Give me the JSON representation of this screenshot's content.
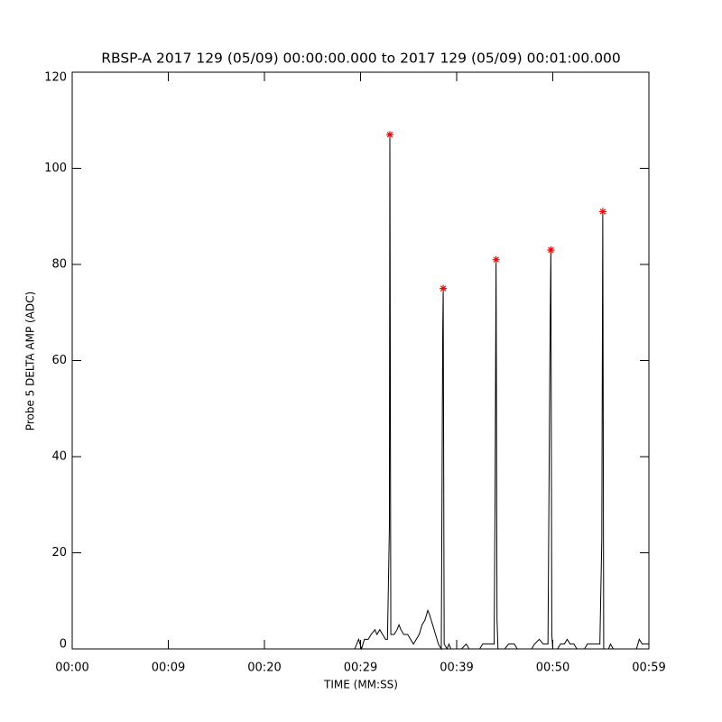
{
  "chart_data": {
    "type": "line",
    "title": "RBSP-A 2017 129 (05/09) 00:00:00.000 to 2017 129 (05/09) 00:01:00.000",
    "x_label": "TIME (MM:SS)",
    "y_label": "Probe 5 DELTA AMP (ADC)",
    "xlim": [
      0,
      60
    ],
    "ylim": [
      0,
      120
    ],
    "xticks": [
      {
        "value": 0,
        "label": "00:00"
      },
      {
        "value": 10,
        "label": "00:09"
      },
      {
        "value": 20,
        "label": "00:20"
      },
      {
        "value": 30,
        "label": "00:29"
      },
      {
        "value": 40,
        "label": "00:39"
      },
      {
        "value": 50,
        "label": "00:50"
      },
      {
        "value": 60,
        "label": "00:59"
      }
    ],
    "yticks": [
      0,
      20,
      40,
      60,
      80,
      100,
      120
    ],
    "series": [
      {
        "color": "#000000",
        "x": [
          29.4,
          29.8,
          30.1,
          30.4,
          30.8,
          31.1,
          31.5,
          31.7,
          32.0,
          32.3,
          32.6,
          32.8,
          33.0,
          33.05,
          33.15,
          33.5,
          33.8,
          34.0,
          34.2,
          34.5,
          34.9,
          35.2,
          35.5,
          35.8,
          36.1,
          36.4,
          36.7,
          37.0,
          37.2,
          37.5,
          37.8,
          38.1,
          38.4,
          38.55,
          38.6,
          38.7,
          39.0,
          39.2,
          39.4,
          40.5,
          41.0,
          41.3,
          42.4,
          42.7,
          43.9,
          44.0,
          44.1,
          44.2,
          44.3,
          45.0,
          45.4,
          46.0,
          46.3,
          47.8,
          48.1,
          48.6,
          49.0,
          49.5,
          49.7,
          49.8,
          49.9,
          50.0,
          50.5,
          50.8,
          51.2,
          51.5,
          51.8,
          52.2,
          52.5,
          53.3,
          53.6,
          54.5,
          54.9,
          55.1,
          55.2,
          55.3,
          55.8,
          56.0,
          56.3,
          58.7,
          59.0,
          59.3,
          59.6,
          60
        ],
        "values": [
          0,
          2,
          0,
          2,
          2,
          3,
          4,
          3,
          4,
          3,
          2,
          2,
          25,
          107,
          3,
          3,
          4,
          5,
          4,
          3,
          3,
          2,
          1,
          2,
          3,
          5,
          6,
          8,
          7,
          5,
          3,
          1,
          0,
          66,
          75,
          1,
          0,
          1,
          0,
          0,
          1,
          0,
          0,
          1,
          1,
          33,
          81,
          6,
          0,
          0,
          1,
          1,
          0,
          0,
          1,
          2,
          1,
          1,
          61,
          83,
          3,
          0,
          0,
          1,
          1,
          2,
          1,
          1,
          0,
          0,
          1,
          1,
          1,
          23,
          91,
          0,
          0,
          1,
          0,
          0,
          2,
          1,
          1,
          1
        ]
      },
      {
        "color": "#ff0000",
        "marker": "asterisk",
        "x": [
          33.05,
          38.6,
          44.1,
          49.8,
          55.2
        ],
        "values": [
          107,
          75,
          81,
          83,
          91
        ]
      }
    ]
  }
}
